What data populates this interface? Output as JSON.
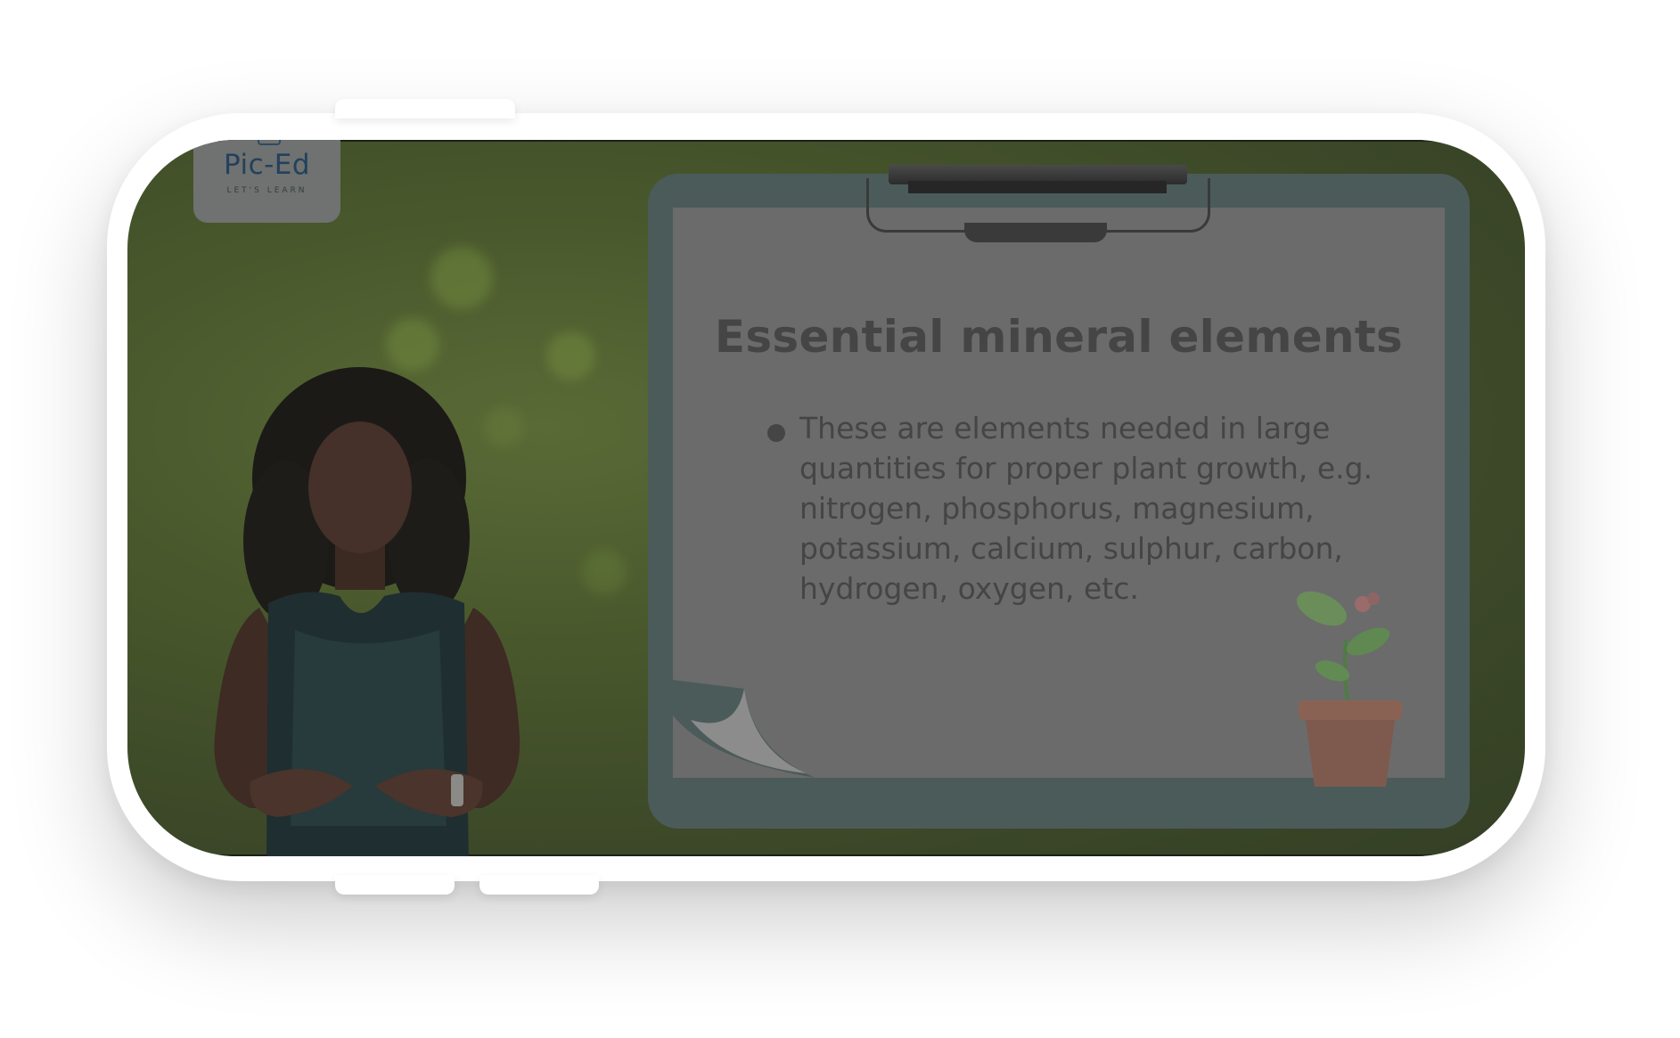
{
  "logo": {
    "name": "Pic-Ed",
    "tagline": "LET'S LEARN"
  },
  "slide": {
    "title": "Essential mineral elements",
    "bullet": "These are elements needed in large quantities for proper plant growth, e.g. nitrogen, phosphorus, magnesium, potassium, calcium, sulphur, carbon, hydrogen, oxygen, etc."
  },
  "icons": [
    "clipboard-clip-icon",
    "potted-plant-icon",
    "logo-mark-icon"
  ],
  "colors": {
    "background_green": "#49582c",
    "board": "#4b5b5a",
    "paper": "#6b6b6b",
    "text": "#454545",
    "logo_text": "#23415d"
  }
}
